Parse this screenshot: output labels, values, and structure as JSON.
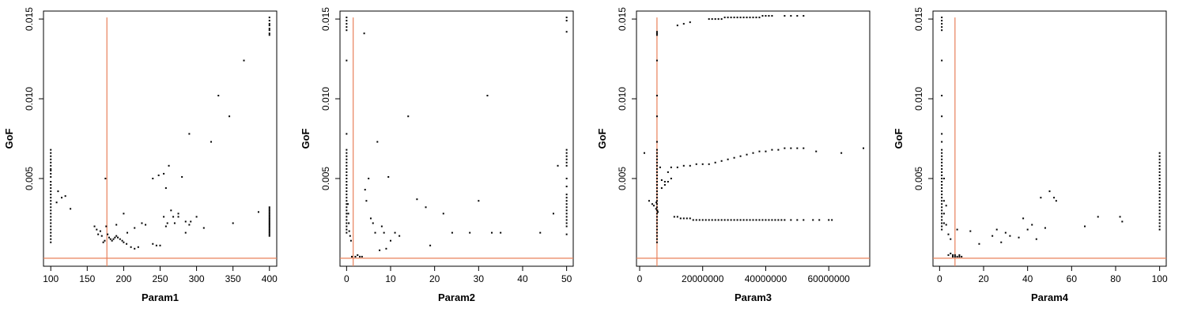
{
  "colors": {
    "reference_line": "#e8805a",
    "points": "#000000",
    "background": "#ffffff"
  },
  "chart_data": [
    {
      "type": "scatter",
      "xlabel": "Param1",
      "ylabel": "GoF",
      "xlim": [
        90,
        410
      ],
      "ylim": [
        -0.0005,
        0.0155
      ],
      "x_ticks": [
        100,
        150,
        200,
        250,
        300,
        350,
        400
      ],
      "x_tick_labels": [
        "100",
        "150",
        "200",
        "250",
        "300",
        "350",
        "400"
      ],
      "y_ticks": [
        0.005,
        0.01,
        0.015
      ],
      "y_tick_labels": [
        "0.005",
        "0.010",
        "0.015"
      ],
      "ref_vline": 177,
      "ref_hline": 0.0,
      "x": [
        100,
        100,
        100,
        100,
        100,
        100,
        100,
        100,
        100,
        100,
        100,
        100,
        100,
        100,
        100,
        100,
        100,
        100,
        100,
        100,
        100,
        100,
        100,
        100,
        100,
        100,
        100,
        100,
        100,
        100,
        108,
        110,
        115,
        120,
        127,
        160,
        163,
        165,
        168,
        170,
        172,
        174,
        175,
        176,
        178,
        180,
        182,
        184,
        186,
        188,
        190,
        192,
        195,
        198,
        200,
        204,
        210,
        215,
        220,
        230,
        240,
        245,
        250,
        255,
        260,
        265,
        270,
        275,
        280,
        285,
        290,
        300,
        310,
        320,
        330,
        345,
        350,
        365,
        385,
        400,
        400,
        400,
        400,
        400,
        400,
        400,
        400,
        400,
        400,
        400,
        400,
        400,
        400,
        400,
        400,
        400,
        400,
        400,
        400,
        400,
        400,
        400,
        400,
        400,
        400,
        400,
        190,
        200,
        205,
        215,
        225,
        255,
        258,
        262,
        268,
        275,
        285,
        290,
        292,
        240,
        248,
        258
      ],
      "y": [
        0.0068,
        0.0066,
        0.0064,
        0.0062,
        0.006,
        0.0058,
        0.0056,
        0.0055,
        0.0053,
        0.0051,
        0.0048,
        0.0046,
        0.0044,
        0.0042,
        0.004,
        0.0038,
        0.0036,
        0.0034,
        0.0032,
        0.003,
        0.0028,
        0.0026,
        0.0024,
        0.0022,
        0.002,
        0.0018,
        0.0016,
        0.0014,
        0.0012,
        0.001,
        0.0035,
        0.0042,
        0.0038,
        0.0039,
        0.0031,
        0.002,
        0.0018,
        0.0015,
        0.0017,
        0.0014,
        0.001,
        0.0011,
        0.005,
        0.002,
        0.0015,
        0.0013,
        0.0012,
        0.0011,
        0.0012,
        0.0013,
        0.0014,
        0.0013,
        0.0012,
        0.0011,
        0.001,
        0.0009,
        0.0007,
        0.0006,
        0.0007,
        0.0021,
        0.0009,
        0.0008,
        0.0008,
        0.0026,
        0.0022,
        0.003,
        0.0022,
        0.0026,
        0.0051,
        0.0023,
        0.0078,
        0.0026,
        0.0019,
        0.0073,
        0.0102,
        0.0089,
        0.0022,
        0.0124,
        0.0029,
        0.0151,
        0.0149,
        0.0147,
        0.0146,
        0.0144,
        0.0143,
        0.0141,
        0.014,
        0.0032,
        0.0031,
        0.003,
        0.0029,
        0.0028,
        0.0027,
        0.0026,
        0.0025,
        0.0024,
        0.0023,
        0.0022,
        0.0021,
        0.002,
        0.0019,
        0.0018,
        0.0017,
        0.0016,
        0.0015,
        0.0014,
        0.0021,
        0.0028,
        0.0016,
        0.0019,
        0.0022,
        0.0053,
        0.002,
        0.0058,
        0.0026,
        0.0028,
        0.0016,
        0.0021,
        0.0023,
        0.005,
        0.0052,
        0.0044
      ]
    },
    {
      "type": "scatter",
      "xlabel": "Param2",
      "ylabel": "GoF",
      "xlim": [
        -1.5,
        51.5
      ],
      "ylim": [
        -0.0005,
        0.0155
      ],
      "x_ticks": [
        0,
        10,
        20,
        30,
        40,
        50
      ],
      "x_tick_labels": [
        "0",
        "10",
        "20",
        "30",
        "40",
        "50"
      ],
      "y_ticks": [
        0.005,
        0.01,
        0.015
      ],
      "y_tick_labels": [
        "0.005",
        "0.010",
        "0.015"
      ],
      "ref_vline": 1.5,
      "ref_hline": 0.0,
      "x": [
        0,
        0,
        0,
        0,
        0,
        0,
        0,
        0,
        0,
        0,
        0,
        0,
        0,
        0,
        0,
        0,
        0,
        0,
        0,
        0,
        0,
        0,
        0,
        0,
        0,
        0,
        0,
        0,
        0,
        0,
        0,
        0,
        0,
        0,
        0.3,
        0.4,
        0.5,
        0.6,
        0.8,
        1.0,
        1.2,
        2.0,
        2.5,
        3.0,
        3.5,
        4.0,
        4.2,
        4.5,
        5.0,
        5.5,
        6.0,
        6.5,
        7.0,
        7.5,
        8.0,
        8.5,
        9.0,
        9.5,
        10.0,
        11.0,
        12.0,
        14.0,
        16.0,
        18.0,
        19.0,
        22.0,
        24.0,
        28.0,
        30.0,
        32.0,
        33.0,
        35.0,
        44.0,
        47.0,
        48.0,
        50,
        50,
        50,
        50,
        50,
        50,
        50,
        50,
        50,
        50,
        50,
        50,
        50,
        50,
        50,
        50,
        50,
        50,
        50,
        50,
        50,
        50,
        50
      ],
      "y": [
        0.0151,
        0.0149,
        0.0147,
        0.0145,
        0.0143,
        0.0124,
        0.0078,
        0.0068,
        0.0066,
        0.0064,
        0.0062,
        0.006,
        0.0058,
        0.0056,
        0.0054,
        0.0052,
        0.005,
        0.0048,
        0.0046,
        0.0044,
        0.0042,
        0.004,
        0.0038,
        0.0036,
        0.0034,
        0.0032,
        0.003,
        0.0028,
        0.0026,
        0.0024,
        0.0022,
        0.002,
        0.0018,
        0.0016,
        0.0034,
        0.0028,
        0.0022,
        0.0017,
        0.0014,
        0.0011,
        0.0001,
        0.0001,
        0.0002,
        0.0001,
        0.0001,
        0.0141,
        0.0043,
        0.0036,
        0.005,
        0.0025,
        0.0022,
        0.0016,
        0.0073,
        0.0005,
        0.002,
        0.0016,
        0.0006,
        0.0051,
        0.0011,
        0.0016,
        0.0014,
        0.0089,
        0.0037,
        0.0032,
        0.0008,
        0.0028,
        0.0016,
        0.0016,
        0.0036,
        0.0102,
        0.0016,
        0.0016,
        0.0016,
        0.0028,
        0.0058,
        0.0151,
        0.0149,
        0.0142,
        0.0068,
        0.0066,
        0.0064,
        0.0062,
        0.006,
        0.0058,
        0.005,
        0.0045,
        0.004,
        0.0038,
        0.0036,
        0.0034,
        0.0032,
        0.003,
        0.0028,
        0.0026,
        0.0024,
        0.0022,
        0.002,
        0.0015
      ]
    },
    {
      "type": "scatter",
      "xlabel": "Param3",
      "ylabel": "GoF",
      "xlim": [
        -1000000,
        73000000
      ],
      "ylim": [
        -0.0005,
        0.0155
      ],
      "x_ticks": [
        0,
        20000000,
        40000000,
        60000000
      ],
      "x_tick_labels": [
        "0",
        "20000000",
        "40000000",
        "60000000"
      ],
      "y_ticks": [
        0.005,
        0.01,
        0.015
      ],
      "y_tick_labels": [
        "0.005",
        "0.010",
        "0.015"
      ],
      "ref_vline": 5500000,
      "ref_hline": 0.0,
      "x": [
        5500000,
        5500000,
        5500000,
        5500000,
        5500000,
        5500000,
        5500000,
        5500000,
        5500000,
        5500000,
        5500000,
        5500000,
        5500000,
        5500000,
        5500000,
        5500000,
        5500000,
        5500000,
        5500000,
        5500000,
        5500000,
        5500000,
        5500000,
        5500000,
        5500000,
        5500000,
        5500000,
        5500000,
        5500000,
        5500000,
        5500000,
        5500000,
        5500000,
        5500000,
        5500000,
        5500000,
        5500000,
        5300000,
        5200000,
        5600000,
        5800000,
        3000000,
        4000000,
        4500000,
        6500000,
        7000000,
        8000000,
        12000000,
        14000000,
        16000000,
        22000000,
        23000000,
        24000000,
        25000000,
        26000000,
        27000000,
        28000000,
        29000000,
        30000000,
        31000000,
        32000000,
        33000000,
        34000000,
        35000000,
        36000000,
        37000000,
        38000000,
        39000000,
        40000000,
        41000000,
        42000000,
        46000000,
        48000000,
        50000000,
        52000000,
        11000000,
        12000000,
        13000000,
        14000000,
        15000000,
        16000000,
        17000000,
        18000000,
        19000000,
        20000000,
        21000000,
        22000000,
        23000000,
        24000000,
        25000000,
        26000000,
        27000000,
        28000000,
        29000000,
        30000000,
        31000000,
        32000000,
        33000000,
        34000000,
        35000000,
        36000000,
        37000000,
        38000000,
        39000000,
        40000000,
        41000000,
        42000000,
        43000000,
        44000000,
        45000000,
        46000000,
        48000000,
        50000000,
        52000000,
        55000000,
        57000000,
        60000000,
        61000000,
        22000000,
        24000000,
        26000000,
        28000000,
        30000000,
        32000000,
        34000000,
        36000000,
        38000000,
        40000000,
        42000000,
        44000000,
        46000000,
        48000000,
        50000000,
        52000000,
        56000000,
        64000000,
        71000000,
        10000000,
        12000000,
        14000000,
        16000000,
        18000000,
        20000000,
        9000000,
        1500000,
        7000000,
        8000000,
        9000000,
        10000000
      ],
      "y": [
        0.0142,
        0.0141,
        0.014,
        0.0124,
        0.0102,
        0.0089,
        0.0073,
        0.0068,
        0.0066,
        0.0064,
        0.0062,
        0.006,
        0.0058,
        0.0056,
        0.0054,
        0.0052,
        0.005,
        0.0048,
        0.0046,
        0.0044,
        0.0042,
        0.004,
        0.0038,
        0.0036,
        0.0034,
        0.0032,
        0.003,
        0.0028,
        0.0026,
        0.0024,
        0.0022,
        0.002,
        0.0018,
        0.0016,
        0.0014,
        0.0012,
        0.001,
        0.0035,
        0.0031,
        0.003,
        0.0029,
        0.0036,
        0.0034,
        0.0033,
        0.0057,
        0.0049,
        0.0048,
        0.0146,
        0.0147,
        0.0148,
        0.015,
        0.015,
        0.015,
        0.015,
        0.015,
        0.0151,
        0.0151,
        0.0151,
        0.0151,
        0.0151,
        0.0151,
        0.0151,
        0.0151,
        0.0151,
        0.0151,
        0.0151,
        0.0151,
        0.0152,
        0.0152,
        0.0152,
        0.0152,
        0.0152,
        0.0152,
        0.0152,
        0.0152,
        0.0026,
        0.0026,
        0.0025,
        0.0025,
        0.0025,
        0.0025,
        0.0024,
        0.0024,
        0.0024,
        0.0024,
        0.0024,
        0.0024,
        0.0024,
        0.0024,
        0.0024,
        0.0024,
        0.0024,
        0.0024,
        0.0024,
        0.0024,
        0.0024,
        0.0024,
        0.0024,
        0.0024,
        0.0024,
        0.0024,
        0.0024,
        0.0024,
        0.0024,
        0.0024,
        0.0024,
        0.0024,
        0.0024,
        0.0024,
        0.0024,
        0.0024,
        0.0024,
        0.0024,
        0.0024,
        0.0024,
        0.0024,
        0.0024,
        0.0024,
        0.0059,
        0.006,
        0.0061,
        0.0062,
        0.0063,
        0.0064,
        0.0065,
        0.0066,
        0.0067,
        0.0067,
        0.0068,
        0.0068,
        0.0069,
        0.0069,
        0.0069,
        0.0069,
        0.0067,
        0.0066,
        0.0069,
        0.0057,
        0.0057,
        0.0058,
        0.0058,
        0.0059,
        0.0059,
        0.0054,
        0.0066,
        0.0044,
        0.0046,
        0.0048,
        0.005
      ]
    },
    {
      "type": "scatter",
      "xlabel": "Param4",
      "ylabel": "GoF",
      "xlim": [
        -3,
        103
      ],
      "ylim": [
        -0.0005,
        0.0155
      ],
      "x_ticks": [
        0,
        20,
        40,
        60,
        80,
        100
      ],
      "x_tick_labels": [
        "0",
        "20",
        "40",
        "60",
        "80",
        "100"
      ],
      "y_ticks": [
        0.005,
        0.01,
        0.015
      ],
      "y_tick_labels": [
        "0.005",
        "0.010",
        "0.015"
      ],
      "ref_vline": 7,
      "ref_hline": 0.0,
      "x": [
        1,
        1,
        1,
        1,
        1,
        1,
        1,
        1,
        1,
        1,
        1,
        1,
        1,
        1,
        1,
        1,
        1,
        1,
        1,
        1,
        1,
        1,
        1,
        1,
        1,
        1,
        1,
        1,
        1,
        1,
        1,
        1,
        1,
        1,
        1,
        1,
        2,
        2,
        2,
        2,
        3,
        3,
        4,
        4,
        5,
        5,
        6,
        6,
        7,
        7,
        8,
        8,
        9,
        9,
        10,
        14,
        18,
        24,
        26,
        28,
        30,
        32,
        36,
        38,
        40,
        42,
        44,
        46,
        48,
        50,
        52,
        53,
        66,
        72,
        82,
        83,
        100,
        100,
        100,
        100,
        100,
        100,
        100,
        100,
        100,
        100,
        100,
        100,
        100,
        100,
        100,
        100,
        100,
        100,
        100,
        100,
        100,
        100,
        100,
        100,
        100
      ],
      "y": [
        0.0151,
        0.0149,
        0.0147,
        0.0145,
        0.0143,
        0.0124,
        0.0102,
        0.0089,
        0.0078,
        0.0073,
        0.0068,
        0.0066,
        0.0064,
        0.0062,
        0.006,
        0.0058,
        0.0056,
        0.0054,
        0.0052,
        0.005,
        0.0048,
        0.0046,
        0.0044,
        0.0042,
        0.004,
        0.0038,
        0.0036,
        0.0034,
        0.0032,
        0.003,
        0.0028,
        0.0026,
        0.0024,
        0.0022,
        0.002,
        0.0018,
        0.005,
        0.0036,
        0.0028,
        0.0022,
        0.0021,
        0.0033,
        0.0015,
        0.0002,
        0.0012,
        0.0003,
        0.0002,
        0.0001,
        0.0001,
        0.0002,
        0.0001,
        0.0018,
        0.0001,
        0.0002,
        0.0001,
        0.0017,
        0.0009,
        0.0014,
        0.0018,
        0.001,
        0.0016,
        0.0014,
        0.0013,
        0.0025,
        0.0018,
        0.0021,
        0.0012,
        0.0038,
        0.0019,
        0.0042,
        0.0038,
        0.0036,
        0.002,
        0.0026,
        0.0026,
        0.0023,
        0.0066,
        0.0064,
        0.0062,
        0.006,
        0.0058,
        0.0056,
        0.0054,
        0.0052,
        0.005,
        0.0048,
        0.0046,
        0.0044,
        0.0042,
        0.004,
        0.0038,
        0.0036,
        0.0034,
        0.0032,
        0.003,
        0.0028,
        0.0026,
        0.0024,
        0.0022,
        0.002,
        0.0018
      ]
    }
  ]
}
